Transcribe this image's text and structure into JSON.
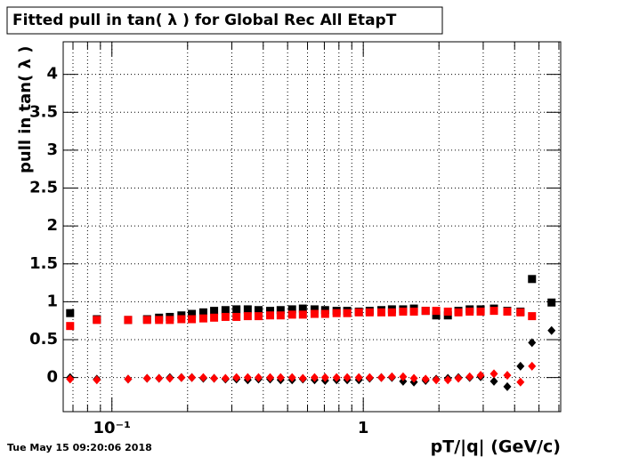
{
  "chart_data": {
    "type": "scatter",
    "title": "Fitted pull in tan( λ ) for Global Rec All EtapT",
    "y_label": "pull in tan( λ )",
    "x_label": "pT/|q| (GeV/c)",
    "timestamp": "Tue May 15 09:20:06 2018",
    "xlog": true,
    "grid": true,
    "xlim": [
      0.064,
      6.1
    ],
    "ylim": [
      -0.45,
      4.43
    ],
    "xticks": [
      {
        "value": 0.1,
        "label": "10⁻¹"
      },
      1
    ],
    "xminor": [
      0.07,
      0.08,
      0.09,
      0.2,
      0.3,
      0.4,
      0.5,
      0.6,
      0.7,
      0.8,
      0.9,
      2,
      3,
      4,
      5,
      6
    ],
    "yticks": [
      0,
      0.5,
      1,
      1.5,
      2,
      2.5,
      3,
      3.5,
      4
    ],
    "x": [
      0.0682,
      0.0871,
      0.116,
      0.138,
      0.154,
      0.17,
      0.189,
      0.208,
      0.231,
      0.255,
      0.283,
      0.313,
      0.347,
      0.383,
      0.426,
      0.469,
      0.521,
      0.575,
      0.64,
      0.705,
      0.783,
      0.863,
      0.96,
      1.06,
      1.18,
      1.3,
      1.44,
      1.59,
      1.77,
      1.95,
      2.17,
      2.39,
      2.65,
      2.93,
      3.31,
      3.74,
      4.22,
      4.69,
      5.61
    ],
    "series": [
      {
        "marker": "square",
        "color": "#000000",
        "values": [
          0.85,
          0.77,
          0.76,
          0.77,
          0.79,
          0.8,
          0.82,
          0.84,
          0.86,
          0.88,
          0.89,
          0.9,
          0.9,
          0.89,
          0.88,
          0.89,
          0.9,
          0.91,
          0.9,
          0.89,
          0.88,
          0.88,
          0.87,
          0.88,
          0.89,
          0.9,
          0.9,
          0.91,
          0.88,
          0.82,
          0.82,
          0.88,
          0.9,
          0.9,
          0.91,
          0.88,
          0.87,
          1.3,
          0.99
        ]
      },
      {
        "marker": "square",
        "color": "#ff0000",
        "values": [
          0.68,
          0.76,
          0.76,
          0.76,
          0.76,
          0.76,
          0.77,
          0.77,
          0.78,
          0.79,
          0.8,
          0.8,
          0.81,
          0.81,
          0.82,
          0.82,
          0.83,
          0.83,
          0.84,
          0.84,
          0.85,
          0.85,
          0.86,
          0.86,
          0.86,
          0.86,
          0.87,
          0.87,
          0.88,
          0.88,
          0.87,
          0.86,
          0.87,
          0.87,
          0.88,
          0.87,
          0.86,
          0.81,
          null
        ]
      },
      {
        "marker": "diamond",
        "color": "#000000",
        "values": [
          0.0,
          -0.02,
          -0.02,
          -0.01,
          -0.01,
          0.0,
          0.0,
          0.0,
          -0.01,
          -0.01,
          -0.02,
          -0.02,
          -0.03,
          -0.02,
          -0.02,
          -0.03,
          -0.03,
          -0.02,
          -0.03,
          -0.04,
          -0.03,
          -0.03,
          -0.03,
          -0.01,
          0.0,
          0.0,
          -0.05,
          -0.06,
          -0.04,
          -0.02,
          -0.01,
          0.0,
          0.0,
          0.01,
          -0.05,
          -0.12,
          0.15,
          0.46,
          0.62
        ]
      },
      {
        "marker": "diamond",
        "color": "#ff0000",
        "values": [
          -0.02,
          -0.03,
          -0.02,
          -0.01,
          -0.01,
          -0.01,
          0.0,
          0.0,
          0.0,
          -0.01,
          -0.01,
          0.0,
          0.0,
          0.0,
          0.0,
          0.0,
          0.0,
          -0.01,
          0.0,
          0.0,
          0.0,
          0.0,
          0.0,
          0.0,
          0.0,
          0.01,
          0.01,
          -0.01,
          -0.02,
          -0.03,
          -0.03,
          -0.01,
          0.01,
          0.03,
          0.05,
          0.03,
          -0.06,
          0.15,
          null
        ]
      }
    ]
  }
}
